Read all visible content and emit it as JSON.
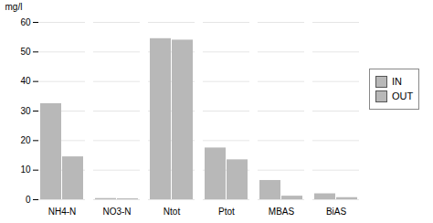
{
  "chart_data": {
    "type": "bar",
    "categories": [
      "NH4-N",
      "NO3-N",
      "Ntot",
      "Ptot",
      "MBAS",
      "BiAS"
    ],
    "series": [
      {
        "name": "IN",
        "color": "#b8b8b8",
        "values": [
          32.5,
          0.4,
          54.5,
          17.5,
          6.5,
          2.0
        ]
      },
      {
        "name": "OUT",
        "color": "#b8b8b8",
        "values": [
          14.5,
          0.3,
          54.0,
          13.5,
          1.2,
          0.7
        ]
      }
    ],
    "ylabel": "mg/l",
    "ylim": [
      0,
      60
    ],
    "yticks": [
      0,
      10,
      20,
      30,
      40,
      50,
      60
    ],
    "grid": true,
    "legend": "right"
  }
}
